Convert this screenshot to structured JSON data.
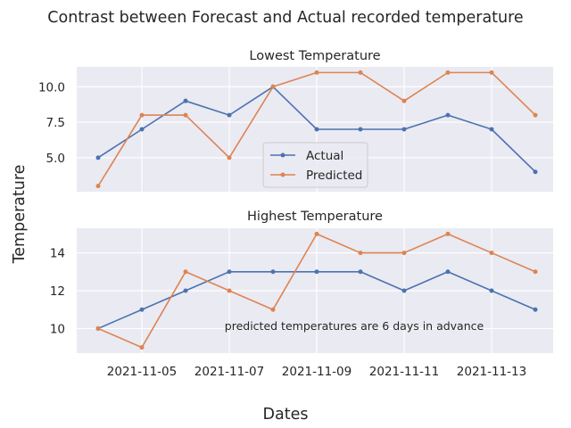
{
  "figure": {
    "suptitle": "Contrast between Forecast and Actual recorded temperature",
    "xlabel": "Dates",
    "ylabel": "Temperature",
    "annotation": "predicted temperatures are 6 days in advance"
  },
  "colors": {
    "background": "#eaeaf2",
    "grid": "#ffffff",
    "actual": "#4c72b0",
    "predicted": "#dd8452"
  },
  "chart_data": [
    {
      "type": "line",
      "title": "Lowest Temperature",
      "x": [
        "2021-11-04",
        "2021-11-05",
        "2021-11-06",
        "2021-11-07",
        "2021-11-08",
        "2021-11-09",
        "2021-11-10",
        "2021-11-11",
        "2021-11-12",
        "2021-11-13",
        "2021-11-14"
      ],
      "series": [
        {
          "name": "Actual",
          "values": [
            5,
            7,
            9,
            8,
            10,
            7,
            7,
            7,
            8,
            7,
            4
          ]
        },
        {
          "name": "Predicted",
          "values": [
            3,
            8,
            8,
            5,
            10,
            11,
            11,
            9,
            11,
            11,
            8
          ]
        }
      ],
      "yticks": [
        "5.0",
        "7.5",
        "10.0"
      ],
      "ylim": [
        2.6,
        11.4
      ],
      "legend": "lower-center",
      "grid": true
    },
    {
      "type": "line",
      "title": "Highest Temperature",
      "x": [
        "2021-11-04",
        "2021-11-05",
        "2021-11-06",
        "2021-11-07",
        "2021-11-08",
        "2021-11-09",
        "2021-11-10",
        "2021-11-11",
        "2021-11-12",
        "2021-11-13",
        "2021-11-14"
      ],
      "series": [
        {
          "name": "Actual",
          "values": [
            10,
            11,
            12,
            13,
            13,
            13,
            13,
            12,
            13,
            12,
            11
          ]
        },
        {
          "name": "Predicted",
          "values": [
            10,
            9,
            13,
            12,
            11,
            15,
            14,
            14,
            15,
            14,
            13
          ]
        }
      ],
      "yticks": [
        "10",
        "12",
        "14"
      ],
      "ylim": [
        8.7,
        15.3
      ],
      "grid": true
    }
  ],
  "xticks": [
    "2021-11-05",
    "2021-11-07",
    "2021-11-09",
    "2021-11-11",
    "2021-11-13"
  ]
}
